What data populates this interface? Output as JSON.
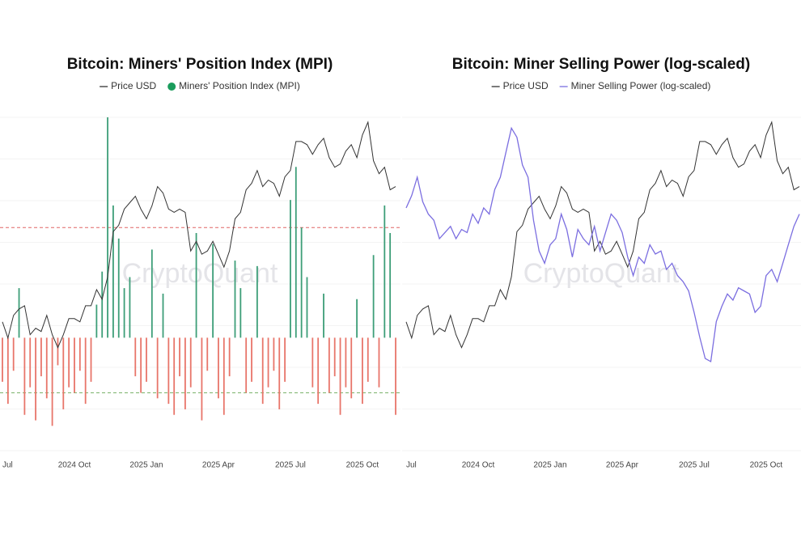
{
  "chart_data": [
    {
      "type": "combo",
      "title": "Bitcoin: Miners' Position Index (MPI)",
      "watermark": "CryptoQuant",
      "categories": [
        "Jul",
        null,
        null,
        null,
        null,
        null,
        null,
        null,
        null,
        null,
        null,
        null,
        null,
        "2024 Oct",
        null,
        null,
        null,
        null,
        null,
        null,
        null,
        null,
        null,
        null,
        null,
        null,
        "2025 Jan",
        null,
        null,
        null,
        null,
        null,
        null,
        null,
        null,
        null,
        null,
        null,
        null,
        "2025 Apr",
        null,
        null,
        null,
        null,
        null,
        null,
        null,
        null,
        null,
        null,
        null,
        null,
        "2025 Jul",
        null,
        null,
        null,
        null,
        null,
        null,
        null,
        null,
        null,
        null,
        null,
        null,
        "2025 Oct",
        null,
        null,
        null,
        null,
        null,
        null
      ],
      "ylim": [
        -2.05,
        4.0
      ],
      "y2lim": [
        22000,
        125500
      ],
      "thresholds": [
        {
          "value": 2,
          "color": "#e06666"
        },
        {
          "value": -1,
          "color": "#7bb36b"
        }
      ],
      "series": [
        {
          "name": "Price USD",
          "type": "line",
          "axis": "y2",
          "color": "#333333",
          "values": [
            62000,
            57000,
            64000,
            66000,
            67000,
            58000,
            60000,
            59000,
            64000,
            58000,
            54000,
            58000,
            63000,
            63000,
            62000,
            67000,
            67000,
            72000,
            69000,
            76000,
            90000,
            92000,
            97000,
            99000,
            101000,
            97000,
            94000,
            98000,
            104000,
            102000,
            97000,
            96000,
            97000,
            96000,
            84000,
            87000,
            83000,
            84000,
            87000,
            83000,
            79000,
            84000,
            94000,
            96000,
            103000,
            105000,
            109000,
            104000,
            106000,
            105000,
            101000,
            107000,
            109000,
            118000,
            118000,
            117000,
            114000,
            117000,
            119000,
            113000,
            110000,
            111000,
            115000,
            117000,
            113000,
            120000,
            124000,
            112000,
            108000,
            110000,
            103000,
            104000
          ]
        },
        {
          "name": "Miners' Position Index (MPI)",
          "type": "bar",
          "color": "#1a9c5c",
          "positive_color": "#3d9e78",
          "negative_color": "#e8756a",
          "values": [
            -0.8,
            -1.2,
            -0.6,
            0.9,
            -1.4,
            -0.9,
            -1.5,
            -0.7,
            -1.1,
            -1.6,
            -0.5,
            -1.3,
            -0.9,
            -1.0,
            -0.6,
            -1.2,
            -0.8,
            0.6,
            1.2,
            4.0,
            2.4,
            1.8,
            0.9,
            1.1,
            -0.7,
            -1.0,
            -0.8,
            1.6,
            -1.1,
            0.8,
            -1.2,
            -1.4,
            -0.7,
            -1.3,
            -0.9,
            1.9,
            -1.5,
            -0.6,
            1.7,
            -1.1,
            -1.4,
            -0.7,
            1.4,
            0.9,
            -1.0,
            -0.8,
            1.3,
            -1.2,
            -0.9,
            -0.6,
            -1.3,
            -0.8,
            2.5,
            3.1,
            2.0,
            1.1,
            -0.9,
            -1.2,
            0.8,
            -1.0,
            -0.7,
            -1.4,
            -0.9,
            -1.1,
            0.7,
            -1.2,
            -0.8,
            1.5,
            -0.9,
            2.4,
            1.9,
            -1.4
          ]
        }
      ]
    },
    {
      "type": "combo",
      "title": "Bitcoin: Miner Selling Power (log-scaled)",
      "watermark": "CryptoQuant",
      "categories": [
        "Jul",
        null,
        null,
        null,
        null,
        null,
        null,
        null,
        null,
        null,
        null,
        null,
        null,
        "2024 Oct",
        null,
        null,
        null,
        null,
        null,
        null,
        null,
        null,
        null,
        null,
        null,
        null,
        "2025 Jan",
        null,
        null,
        null,
        null,
        null,
        null,
        null,
        null,
        null,
        null,
        null,
        null,
        "2025 Apr",
        null,
        null,
        null,
        null,
        null,
        null,
        null,
        null,
        null,
        null,
        null,
        null,
        "2025 Jul",
        null,
        null,
        null,
        null,
        null,
        null,
        null,
        null,
        null,
        null,
        null,
        null,
        "2025 Oct",
        null,
        null,
        null,
        null,
        null,
        null
      ],
      "ylim": [
        -17,
        91.5
      ],
      "y2lim": [
        22000,
        125500
      ],
      "series": [
        {
          "name": "Price USD",
          "type": "line",
          "axis": "y2",
          "color": "#333333",
          "values": [
            62000,
            57000,
            64000,
            66000,
            67000,
            58000,
            60000,
            59000,
            64000,
            58000,
            54000,
            58000,
            63000,
            63000,
            62000,
            67000,
            67000,
            72000,
            69000,
            76000,
            90000,
            92000,
            97000,
            99000,
            101000,
            97000,
            94000,
            98000,
            104000,
            102000,
            97000,
            96000,
            97000,
            96000,
            84000,
            87000,
            83000,
            84000,
            87000,
            83000,
            79000,
            84000,
            94000,
            96000,
            103000,
            105000,
            109000,
            104000,
            106000,
            105000,
            101000,
            107000,
            109000,
            118000,
            118000,
            117000,
            114000,
            117000,
            119000,
            113000,
            110000,
            111000,
            115000,
            117000,
            113000,
            120000,
            124000,
            112000,
            108000,
            110000,
            103000,
            104000
          ]
        },
        {
          "name": "Miner Selling Power (log-scaled)",
          "type": "line",
          "color": "#7b6ee0",
          "values": [
            62,
            66,
            72,
            64,
            60,
            58,
            52,
            54,
            56,
            52,
            55,
            54,
            60,
            57,
            62,
            60,
            68,
            72,
            80,
            88,
            85,
            76,
            72,
            58,
            48,
            44,
            50,
            52,
            60,
            55,
            46,
            55,
            52,
            50,
            56,
            48,
            54,
            60,
            58,
            54,
            46,
            40,
            46,
            44,
            50,
            47,
            48,
            42,
            44,
            40,
            38,
            35,
            28,
            20,
            13,
            12,
            25,
            30,
            34,
            32,
            36,
            35,
            34,
            28,
            30,
            40,
            42,
            38,
            44,
            50,
            56,
            60
          ]
        }
      ]
    }
  ]
}
